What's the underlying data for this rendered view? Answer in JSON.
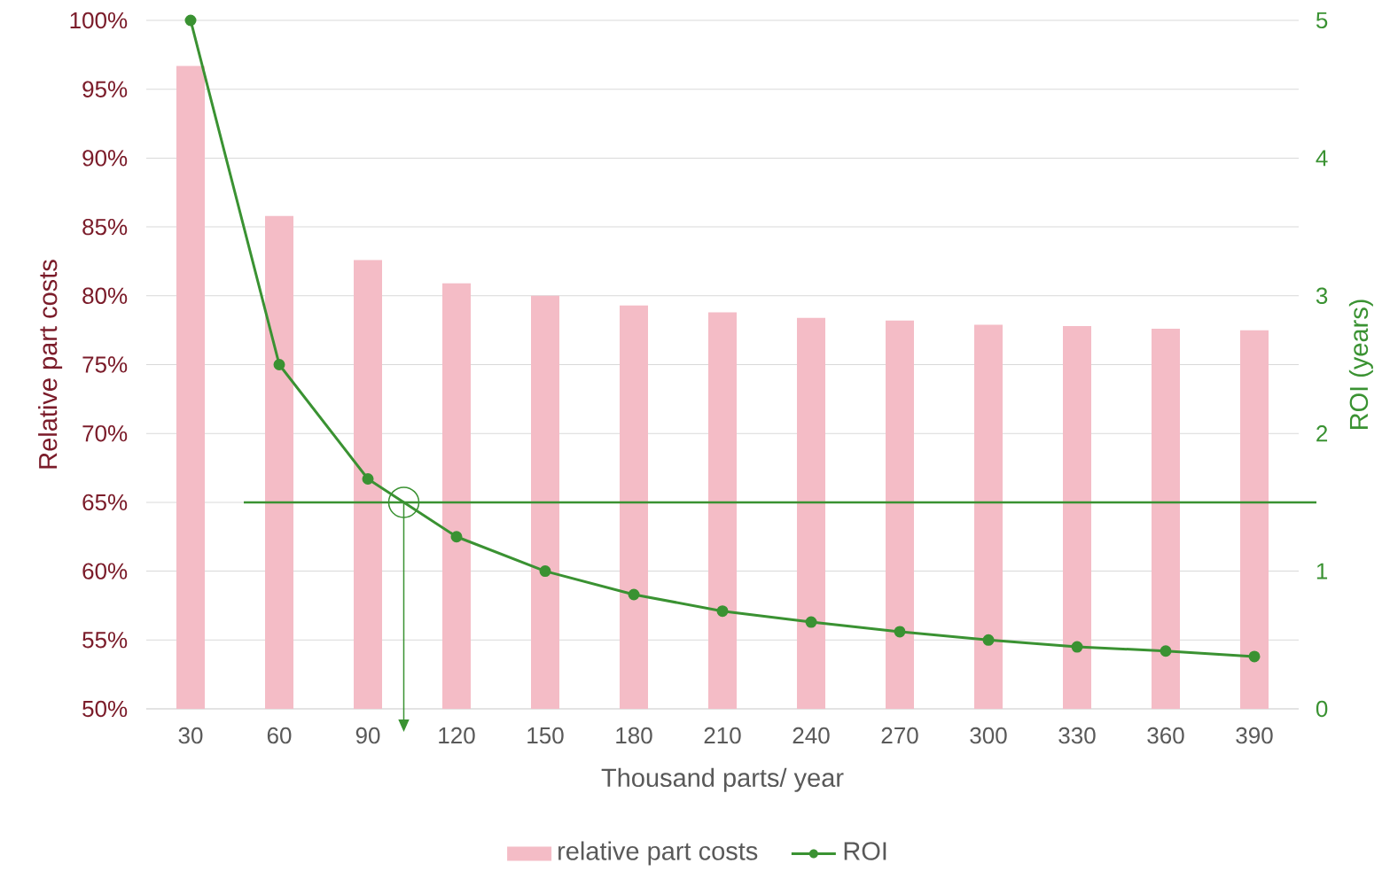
{
  "chart_data": {
    "type": "bar",
    "xlabel": "Thousand parts/ year",
    "ylabel": "Relative part costs",
    "y2label": "ROI (years)",
    "categories": [
      "30",
      "60",
      "90",
      "120",
      "150",
      "180",
      "210",
      "240",
      "270",
      "300",
      "330",
      "360",
      "390"
    ],
    "series": [
      {
        "name": "relative part costs",
        "color": "#f4bcc6",
        "values": [
          96.7,
          85.8,
          82.6,
          80.9,
          80.0,
          79.3,
          78.8,
          78.4,
          78.2,
          77.9,
          77.8,
          77.6,
          77.5
        ]
      },
      {
        "name": "ROI",
        "type": "line",
        "axis": "y2",
        "color": "#3a9232",
        "marker": "circle",
        "values": [
          5,
          2.5,
          1.67,
          1.25,
          1,
          0.83,
          0.71,
          0.63,
          0.56,
          0.5,
          0.45,
          0.42,
          0.38
        ]
      }
    ],
    "ylim": [
      50,
      100
    ],
    "yticks": [
      {
        "value": 50,
        "label": "50%"
      },
      {
        "value": 55,
        "label": "55%"
      },
      {
        "value": 60,
        "label": "60%"
      },
      {
        "value": 65,
        "label": "65%"
      },
      {
        "value": 70,
        "label": "70%"
      },
      {
        "value": 75,
        "label": "75%"
      },
      {
        "value": 80,
        "label": "80%"
      },
      {
        "value": 85,
        "label": "85%"
      },
      {
        "value": 90,
        "label": "90%"
      },
      {
        "value": 95,
        "label": "95%"
      },
      {
        "value": 100,
        "label": "100%"
      }
    ],
    "y2lim": [
      0,
      5
    ],
    "y2ticks": [
      0,
      1,
      2,
      3,
      4,
      5
    ],
    "ref_lines": [
      {
        "axis": "y2",
        "value": 1.5,
        "color": "#3a9232"
      }
    ],
    "grid": "y",
    "legend": "bottom"
  }
}
